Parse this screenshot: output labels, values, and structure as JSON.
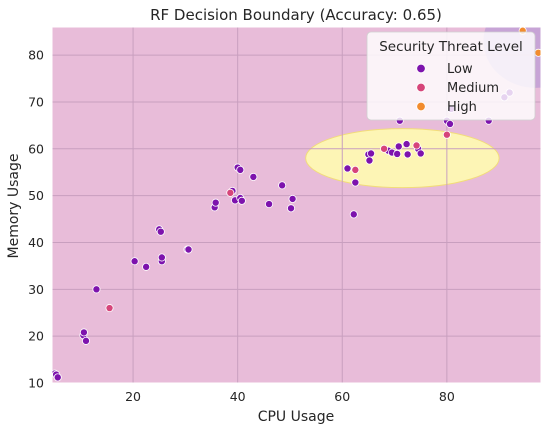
{
  "chart_data": {
    "type": "scatter",
    "title": "RF Decision Boundary (Accuracy: 0.65)",
    "xlabel": "CPU Usage",
    "ylabel": "Memory Usage",
    "xlim": [
      4.5,
      98
    ],
    "ylim": [
      10,
      86
    ],
    "xticks": [
      20,
      40,
      60,
      80
    ],
    "yticks": [
      10,
      20,
      30,
      40,
      50,
      60,
      70,
      80
    ],
    "grid": true,
    "legend": {
      "title": "Security Threat Level",
      "placement": "top-right"
    },
    "regions": [
      {
        "class": "Low",
        "color": "#e8bcd9",
        "extent": "background"
      },
      {
        "class": "Medium",
        "color": "#fdf5b5",
        "shape": "ellipse",
        "center": [
          71.5,
          58
        ],
        "radius": [
          18.5,
          6.3
        ]
      },
      {
        "class": "High",
        "color": "#c7a4d6",
        "shape": "ellipse",
        "center": [
          97,
          83
        ],
        "radius": [
          10,
          10
        ]
      }
    ],
    "series": [
      {
        "name": "Low",
        "color": "#7d13ad",
        "points": [
          [
            5,
            12
          ],
          [
            5.3,
            11.8
          ],
          [
            5.6,
            11.2
          ],
          [
            10.5,
            20.2
          ],
          [
            10.6,
            20.8
          ],
          [
            11,
            19
          ],
          [
            13,
            30
          ],
          [
            20.3,
            36
          ],
          [
            22.5,
            34.8
          ],
          [
            25,
            42.8
          ],
          [
            25.3,
            42.3
          ],
          [
            25.5,
            36
          ],
          [
            25.5,
            36.8
          ],
          [
            30.4,
            38.5
          ],
          [
            30.6,
            38.5
          ],
          [
            35.6,
            47.5
          ],
          [
            35.8,
            48.5
          ],
          [
            39,
            51
          ],
          [
            39.5,
            49
          ],
          [
            40,
            56
          ],
          [
            40.5,
            55.5
          ],
          [
            40.5,
            49.5
          ],
          [
            40.8,
            48.9
          ],
          [
            43,
            54
          ],
          [
            46,
            48.2
          ],
          [
            48.5,
            52.2
          ],
          [
            50.2,
            47.3
          ],
          [
            50.5,
            49.3
          ],
          [
            61,
            55.8
          ],
          [
            62.2,
            46
          ],
          [
            62.5,
            52.8
          ],
          [
            65,
            58.8
          ],
          [
            65.2,
            57.5
          ],
          [
            65.5,
            59
          ],
          [
            68.8,
            59.6
          ],
          [
            69.5,
            59.2
          ],
          [
            70.5,
            58.9
          ],
          [
            70.8,
            60.5
          ],
          [
            71,
            66
          ],
          [
            72.3,
            61
          ],
          [
            72.5,
            58.8
          ],
          [
            74.5,
            60
          ],
          [
            75,
            59
          ],
          [
            80,
            66
          ],
          [
            80.6,
            65.3
          ],
          [
            80.8,
            68.5
          ],
          [
            88,
            66
          ],
          [
            91,
            71
          ],
          [
            92,
            72
          ]
        ]
      },
      {
        "name": "Medium",
        "color": "#d6457a",
        "points": [
          [
            15.5,
            26
          ],
          [
            38.6,
            50.6
          ],
          [
            62.5,
            55.5
          ],
          [
            68,
            60
          ],
          [
            74.2,
            60.7
          ],
          [
            80,
            63
          ]
        ]
      },
      {
        "name": "High",
        "color": "#f28c2e",
        "points": [
          [
            94.5,
            85.2
          ],
          [
            97.5,
            80.5
          ]
        ]
      }
    ]
  }
}
